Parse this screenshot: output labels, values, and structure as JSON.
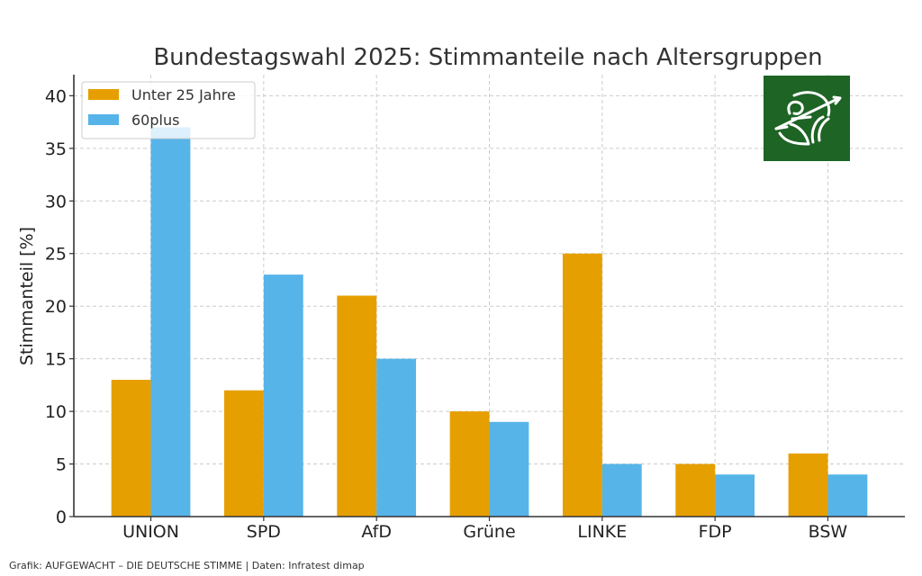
{
  "chart_data": {
    "type": "bar",
    "title": "Bundestagswahl 2025: Stimmanteile nach Altersgruppen",
    "xlabel": "",
    "ylabel": "Stimmanteil [%]",
    "categories": [
      "UNION",
      "SPD",
      "AfD",
      "Grüne",
      "LINKE",
      "FDP",
      "BSW"
    ],
    "series": [
      {
        "name": "Unter 25 Jahre",
        "color": "#E69F00",
        "values": [
          13,
          12,
          21,
          10,
          25,
          5,
          6
        ]
      },
      {
        "name": "60plus",
        "color": "#56B4E9",
        "values": [
          37,
          23,
          15,
          9,
          5,
          4,
          4
        ]
      }
    ],
    "ylim": [
      0,
      42
    ],
    "yticks": [
      0,
      5,
      10,
      15,
      20,
      25,
      30,
      35,
      40
    ],
    "grid": true,
    "legend_position": "top-left"
  },
  "logo": {
    "name": "archer-logo",
    "background": "#1E6425"
  },
  "footer": "Grafik: AUFGEWACHT – DIE DEUTSCHE STIMME | Daten: Infratest dimap"
}
